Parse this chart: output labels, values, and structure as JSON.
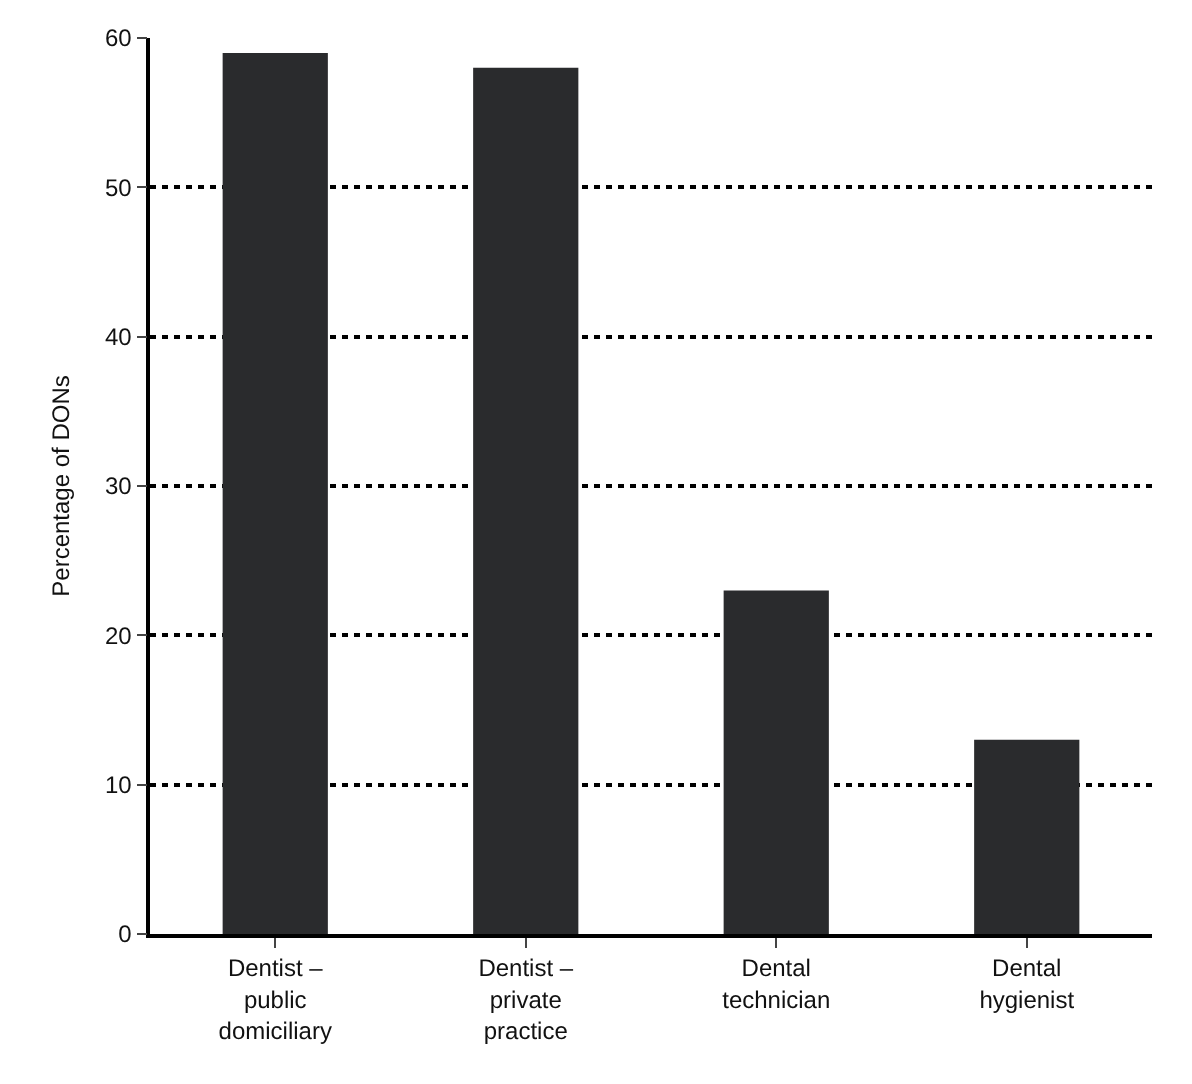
{
  "chart_data": {
    "type": "bar",
    "ylabel": "Percentage of DONs",
    "categories": [
      "Dentist –\npublic\ndomiciliary",
      "Dentist –\nprivate\npractice",
      "Dental\ntechnician",
      "Dental\nhygienist"
    ],
    "values": [
      59,
      58,
      23,
      13
    ],
    "color": "#2a2b2d",
    "ylim": [
      0,
      60
    ],
    "yticks": [
      0,
      10,
      20,
      30,
      40,
      50,
      60
    ],
    "grid": "y"
  }
}
